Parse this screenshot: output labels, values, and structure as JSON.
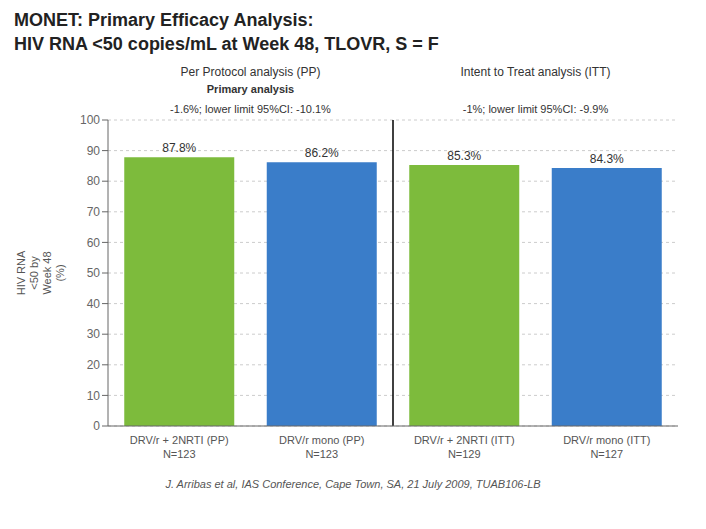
{
  "chart_data": {
    "type": "bar",
    "title": "MONET: Primary Efficacy Analysis:",
    "subtitle": "HIV RNA <50 copies/mL at Week 48, TLOVR, S = F",
    "categories": [
      "DRV/r + 2NRTI (PP)\nN=123",
      "DRV/r mono (PP)\nN=123",
      "DRV/r + 2NRTI (ITT)\nN=129",
      "DRV/r mono (ITT)\nN=127"
    ],
    "values": [
      87.8,
      86.2,
      85.3,
      84.3
    ],
    "value_labels": [
      "87.8%",
      "86.2%",
      "85.3%",
      "84.3%"
    ],
    "colors": [
      "#7DBB3C",
      "#3A7DC9",
      "#7DBB3C",
      "#3A7DC9"
    ],
    "ylabel": "HIV RNA\n<50 by\nWeek 48\n(%)",
    "ylim": [
      0,
      100
    ],
    "yticks": [
      0,
      10,
      20,
      30,
      40,
      50,
      60,
      70,
      80,
      90,
      100
    ],
    "grid": true,
    "data_labels": true,
    "group_headers": [
      {
        "header": "Per Protocol analysis (PP)",
        "subheader": "Primary analysis",
        "categories": [
          "DRV/r + 2NRTI (PP)\nN=123",
          "DRV/r mono (PP)\nN=123"
        ]
      },
      {
        "header": "Intent to Treat analysis (ITT)",
        "categories": [
          "DRV/r + 2NRTI (ITT)\nN=129",
          "DRV/r mono (ITT)\nN=127"
        ]
      }
    ],
    "annotations": [
      {
        "text": "-1.6%; lower limit 95%CI: -10.1%",
        "categories": [
          "DRV/r + 2NRTI (PP)\nN=123",
          "DRV/r mono (PP)\nN=123"
        ]
      },
      {
        "text": "-1%; lower limit 95%CI: -9.9%",
        "categories": [
          "DRV/r + 2NRTI (ITT)\nN=129",
          "DRV/r mono (ITT)\nN=127"
        ]
      }
    ],
    "footer": "J. Arribas et al, IAS Conference, Cape Town, SA, 21 July 2009, TUAB106-LB"
  }
}
